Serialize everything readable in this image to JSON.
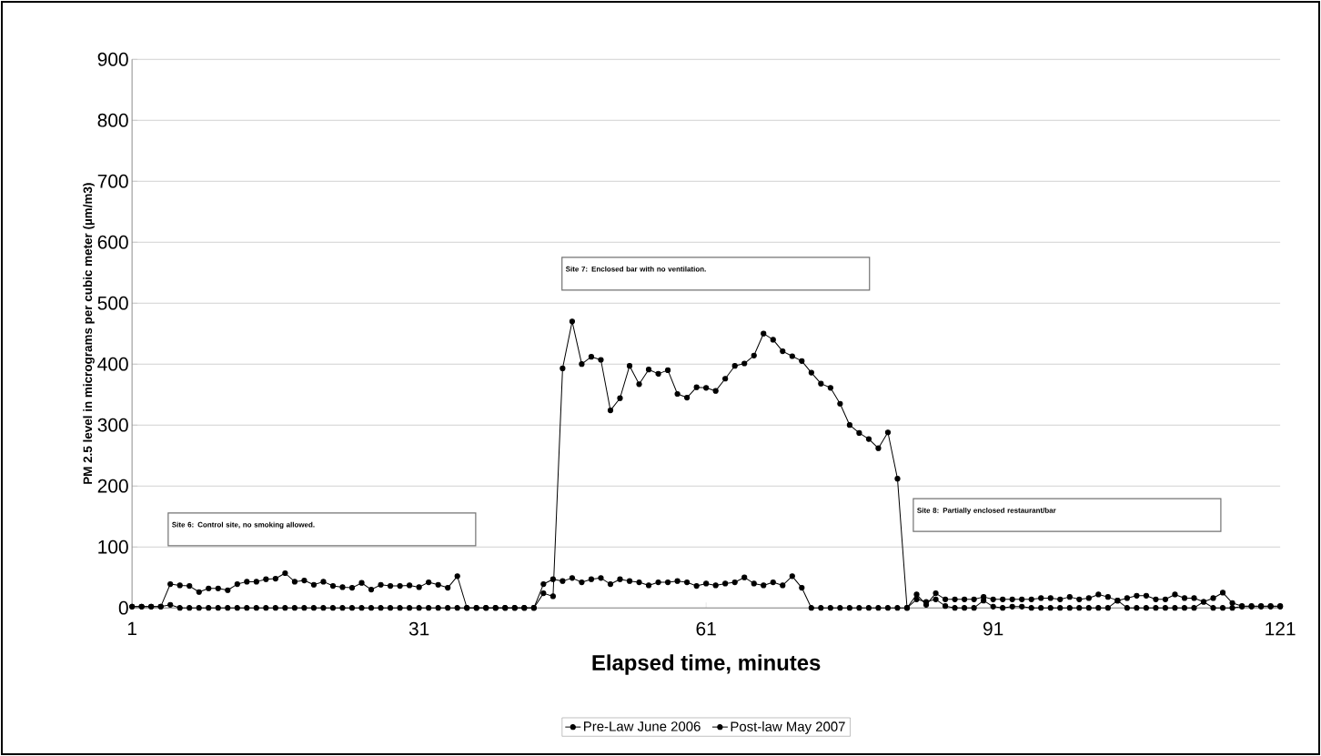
{
  "chart_data": {
    "type": "line",
    "xlabel": "Elapsed time, minutes",
    "ylabel": "PM 2.5 level in micrograms per cubic meter (µm/m3)",
    "x": [
      1,
      2,
      3,
      4,
      5,
      6,
      7,
      8,
      9,
      10,
      11,
      12,
      13,
      14,
      15,
      16,
      17,
      18,
      19,
      20,
      21,
      22,
      23,
      24,
      25,
      26,
      27,
      28,
      29,
      30,
      31,
      32,
      33,
      34,
      35,
      36,
      37,
      38,
      39,
      40,
      41,
      42,
      43,
      44,
      45,
      46,
      47,
      48,
      49,
      50,
      51,
      52,
      53,
      54,
      55,
      56,
      57,
      58,
      59,
      60,
      61,
      62,
      63,
      64,
      65,
      66,
      67,
      68,
      69,
      70,
      71,
      72,
      73,
      74,
      75,
      76,
      77,
      78,
      79,
      80,
      81,
      82,
      83,
      84,
      85,
      86,
      87,
      88,
      89,
      90,
      91,
      92,
      93,
      94,
      95,
      96,
      97,
      98,
      99,
      100,
      101,
      102,
      103,
      104,
      105,
      106,
      107,
      108,
      109,
      110,
      111,
      112,
      113,
      114,
      115,
      116,
      117,
      118,
      119,
      120,
      121
    ],
    "series": [
      {
        "name": "Pre-Law June 2006",
        "color": "#000000",
        "values": [
          2,
          2,
          2,
          2,
          39,
          37,
          36,
          26,
          32,
          32,
          29,
          39,
          43,
          43,
          47,
          48,
          57,
          43,
          45,
          38,
          43,
          36,
          34,
          33,
          41,
          30,
          38,
          36,
          36,
          37,
          34,
          42,
          38,
          33,
          52,
          0,
          0,
          0,
          0,
          0,
          0,
          0,
          0,
          24,
          19,
          393,
          470,
          400,
          412,
          407,
          324,
          344,
          397,
          367,
          391,
          384,
          390,
          351,
          345,
          362,
          361,
          356,
          376,
          397,
          401,
          414,
          450,
          440,
          421,
          413,
          405,
          386,
          368,
          361,
          335,
          300,
          287,
          277,
          262,
          288,
          212,
          0,
          22,
          5,
          24,
          14,
          14,
          14,
          14,
          18,
          14,
          14,
          14,
          14,
          14,
          16,
          16,
          14,
          18,
          14,
          16,
          22,
          18,
          12,
          16,
          20,
          20,
          14,
          14,
          22,
          16,
          16,
          10,
          16,
          25,
          8,
          3,
          3,
          3,
          3,
          3
        ]
      },
      {
        "name": "Post-law May 2007",
        "color": "#000000",
        "values": [
          2,
          2,
          2,
          2,
          5,
          0,
          0,
          0,
          0,
          0,
          0,
          0,
          0,
          0,
          0,
          0,
          0,
          0,
          0,
          0,
          0,
          0,
          0,
          0,
          0,
          0,
          0,
          0,
          0,
          0,
          0,
          0,
          0,
          0,
          0,
          0,
          0,
          0,
          0,
          0,
          0,
          0,
          0,
          39,
          47,
          44,
          49,
          42,
          47,
          49,
          39,
          47,
          44,
          42,
          37,
          42,
          42,
          44,
          42,
          36,
          40,
          37,
          40,
          42,
          50,
          40,
          37,
          42,
          37,
          52,
          33,
          0,
          0,
          0,
          0,
          0,
          0,
          0,
          0,
          0,
          0,
          0,
          14,
          10,
          14,
          3,
          0,
          0,
          0,
          12,
          2,
          0,
          2,
          2,
          0,
          0,
          0,
          0,
          0,
          0,
          0,
          0,
          0,
          12,
          0,
          0,
          0,
          0,
          0,
          0,
          0,
          0,
          10,
          0,
          0,
          0,
          2,
          2,
          2,
          2,
          2
        ]
      }
    ],
    "xlim": [
      1,
      121
    ],
    "xticks": [
      1,
      31,
      61,
      91,
      121
    ],
    "ylim": [
      0,
      900
    ],
    "yticks": [
      0,
      100,
      200,
      300,
      400,
      500,
      600,
      700,
      800,
      900
    ],
    "grid": "y",
    "legend": "bottom",
    "marker": "circle",
    "line_style": "solid",
    "annotations": [
      "Site 6: Control site, no smoking allowed.",
      "Site 7: Enclosed bar with no ventilation.",
      "Site 8: Partially enclosed restaurant/bar"
    ]
  }
}
